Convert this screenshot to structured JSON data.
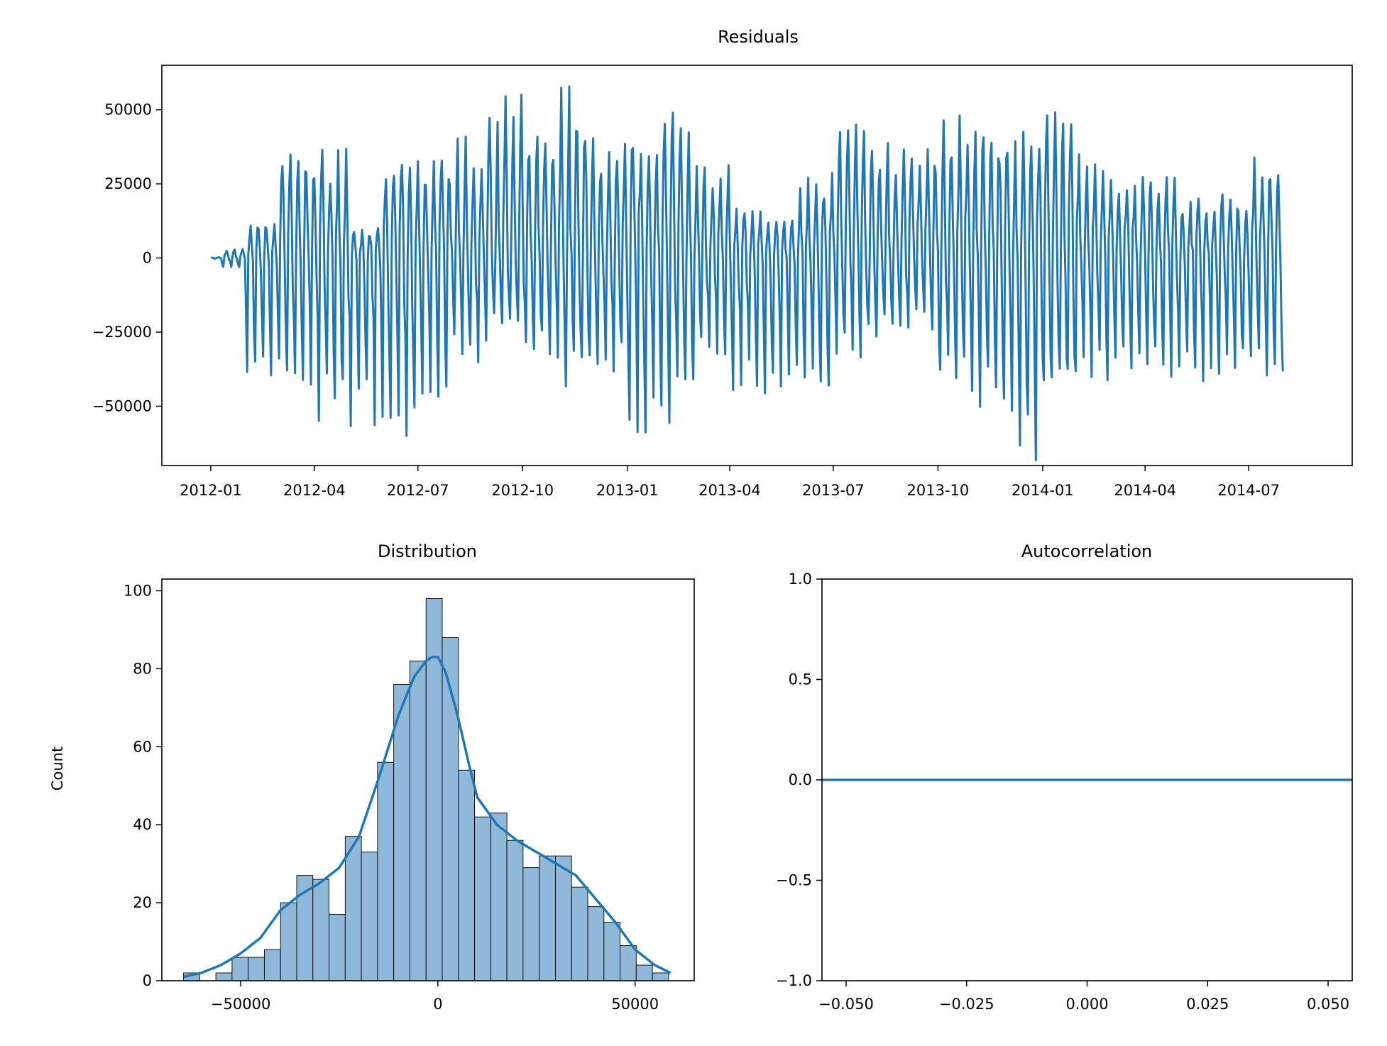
{
  "colors": {
    "line": "#1f77b4",
    "hist_fill": "#8fb8d9",
    "hist_edge": "#000000",
    "axes": "#000000",
    "background": "#ffffff"
  },
  "chart_data": [
    {
      "id": "residuals",
      "type": "line",
      "title": "Residuals",
      "xlabel": "",
      "ylabel": "",
      "x_type": "date",
      "x_start": "2012-01-01",
      "x_end": "2014-07-31",
      "xlim": [
        "2011-11-19",
        "2014-09-30"
      ],
      "ylim": [
        -70000,
        65000
      ],
      "x_ticks": [
        "2012-01",
        "2012-04",
        "2012-07",
        "2012-10",
        "2013-01",
        "2013-04",
        "2013-07",
        "2013-10",
        "2014-01",
        "2014-04",
        "2014-07"
      ],
      "y_ticks": [
        -50000,
        -25000,
        0,
        25000,
        50000
      ],
      "y_tick_labels": [
        "−50000",
        "−25000",
        "0",
        "25000",
        "50000"
      ],
      "grid": false,
      "series": [
        {
          "monthly_envelope": {
            "months": [
              "2012-01",
              "2012-02",
              "2012-03",
              "2012-04",
              "2012-05",
              "2012-06",
              "2012-07",
              "2012-08",
              "2012-09",
              "2012-10",
              "2012-11",
              "2012-12",
              "2013-01",
              "2013-02",
              "2013-03",
              "2013-04",
              "2013-05",
              "2013-06",
              "2013-07",
              "2013-08",
              "2013-09",
              "2013-10",
              "2013-11",
              "2013-12",
              "2014-01",
              "2014-02",
              "2014-03",
              "2014-04",
              "2014-05",
              "2014-06",
              "2014-07"
            ],
            "upper": [
              3000,
              14000,
              41000,
              37000,
              10000,
              35000,
              36000,
              40000,
              56000,
              43000,
              58000,
              40000,
              50000,
              53000,
              32000,
              18000,
              14000,
              28000,
              49000,
              40000,
              41000,
              48000,
              47000,
              46000,
              52000,
              38000,
              32000,
              28000,
              22000,
              23000,
              35000
            ],
            "lower": [
              -3000,
              -36000,
              -38000,
              -50000,
              -52000,
              -60000,
              -44000,
              -32000,
              -21000,
              -30000,
              -40000,
              -35000,
              -53000,
              -50000,
              -30000,
              -40000,
              -44000,
              -44000,
              -30000,
              -24000,
              -22000,
              -40000,
              -47000,
              -63000,
              -48000,
              -38000,
              -38000,
              -36000,
              -38000,
              -36000,
              -36000
            ]
          }
        }
      ]
    },
    {
      "id": "distribution",
      "type": "bar",
      "title": "Distribution",
      "xlabel": "",
      "ylabel": "Count",
      "xlim": [
        -70000,
        65000
      ],
      "ylim": [
        0,
        103
      ],
      "x_ticks": [
        -50000,
        0,
        50000
      ],
      "x_tick_labels": [
        "−50000",
        "0",
        "50000"
      ],
      "y_ticks": [
        0,
        20,
        40,
        60,
        80,
        100
      ],
      "bin_start": -64500,
      "bin_width": 4100,
      "values": [
        2,
        0,
        2,
        6,
        6,
        8,
        20,
        27,
        26,
        17,
        37,
        33,
        56,
        76,
        82,
        98,
        88,
        54,
        42,
        43,
        36,
        29,
        32,
        32,
        24,
        19,
        15,
        9,
        4,
        2
      ],
      "kde_x": [
        -64500,
        -60000,
        -55000,
        -50000,
        -45000,
        -40000,
        -35000,
        -30000,
        -25000,
        -20000,
        -15000,
        -10000,
        -6000,
        -3000,
        -1500,
        0,
        2000,
        5000,
        8000,
        10000,
        15000,
        20000,
        25000,
        30000,
        35000,
        40000,
        45000,
        50000,
        55000,
        59000
      ],
      "kde_y": [
        1,
        2,
        4,
        7,
        11,
        18,
        22,
        25,
        29,
        37,
        52,
        68,
        78,
        82,
        83,
        83,
        79,
        68,
        55,
        47,
        40,
        36,
        33,
        30,
        27,
        21,
        15,
        8,
        4,
        2
      ],
      "grid": false
    },
    {
      "id": "autocorrelation",
      "type": "line",
      "title": "Autocorrelation",
      "xlabel": "",
      "ylabel": "",
      "xlim": [
        -0.055,
        0.055
      ],
      "ylim": [
        -1.0,
        1.0
      ],
      "x_ticks": [
        -0.05,
        -0.025,
        0.0,
        0.025,
        0.05
      ],
      "x_tick_labels": [
        "−0.050",
        "−0.025",
        "0.000",
        "0.025",
        "0.050"
      ],
      "y_ticks": [
        -1.0,
        -0.5,
        0.0,
        0.5,
        1.0
      ],
      "y_tick_labels": [
        "−1.0",
        "−0.5",
        "0.0",
        "0.5",
        "1.0"
      ],
      "series": [
        {
          "x": [
            -0.055,
            0.055
          ],
          "y": [
            0.0,
            0.0
          ]
        }
      ],
      "grid": false
    }
  ]
}
